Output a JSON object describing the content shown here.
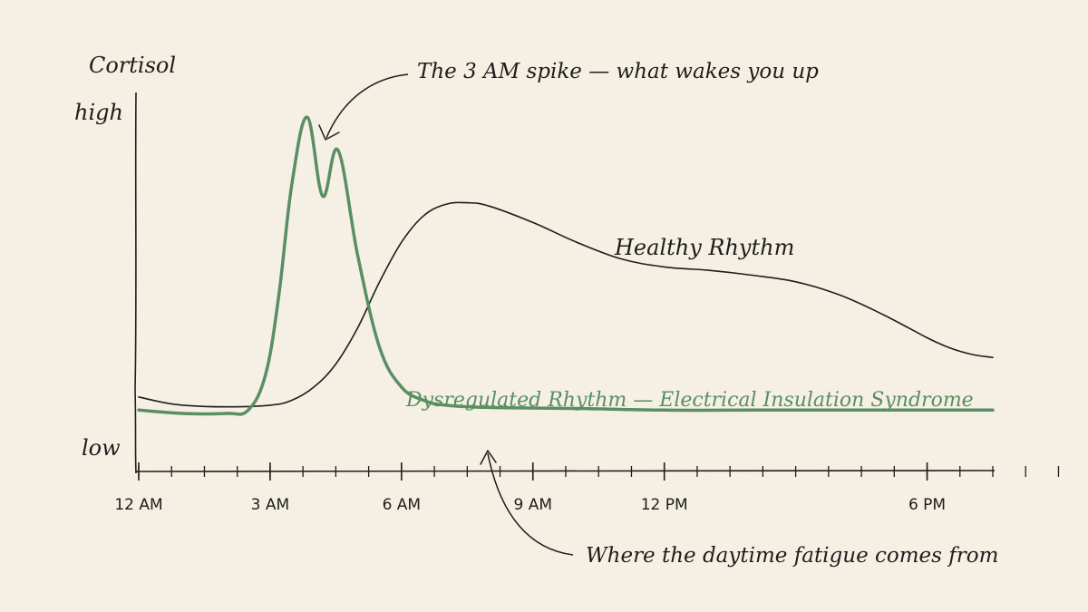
{
  "colors": {
    "background": "#f5f0e3",
    "ink": "#1d1d1d",
    "dysregulated": "#5a8e63"
  },
  "chart_data": {
    "type": "line",
    "ylabel": "Cortisol",
    "ytick_labels": [
      "high",
      "low"
    ],
    "ylim": [
      0,
      100
    ],
    "xlim": [
      0,
      24
    ],
    "x_tick_labels": [
      {
        "hour": 0,
        "label": "12 AM"
      },
      {
        "hour": 3,
        "label": "3 AM"
      },
      {
        "hour": 6,
        "label": "6 AM"
      },
      {
        "hour": 9,
        "label": "9 AM"
      },
      {
        "hour": 12,
        "label": "12 PM"
      },
      {
        "hour": 18,
        "label": "6 PM"
      }
    ],
    "minor_ticks": [
      0,
      0.75,
      1.5,
      2.25,
      3,
      3.75,
      4.5,
      5.25,
      6,
      6.75,
      7.5,
      8.25,
      9,
      9.75,
      10.5,
      11.25,
      12,
      12.75,
      13.5,
      14.25,
      15,
      15.75,
      16.5,
      17.25,
      18,
      18.75,
      19.5,
      20.25,
      21,
      21.75
    ],
    "series": [
      {
        "name": "Healthy Rhythm",
        "color": "#1d1d1d",
        "points": [
          [
            0,
            13
          ],
          [
            0.5,
            11.5
          ],
          [
            1,
            10.5
          ],
          [
            2,
            10
          ],
          [
            3,
            10.5
          ],
          [
            3.5,
            12
          ],
          [
            4,
            16
          ],
          [
            4.5,
            23
          ],
          [
            5,
            34
          ],
          [
            5.5,
            48
          ],
          [
            6,
            60
          ],
          [
            6.5,
            68
          ],
          [
            7,
            71.5
          ],
          [
            7.5,
            72
          ],
          [
            8,
            71
          ],
          [
            9,
            66
          ],
          [
            10,
            60
          ],
          [
            11,
            55
          ],
          [
            12,
            52.5
          ],
          [
            13,
            51.5
          ],
          [
            14,
            50
          ],
          [
            15,
            48
          ],
          [
            16,
            44
          ],
          [
            17,
            38
          ],
          [
            18,
            31
          ],
          [
            18.5,
            28
          ],
          [
            19,
            26
          ],
          [
            19.5,
            25
          ]
        ]
      },
      {
        "name": "Dysregulated Rhythm — Electrical Insulation Syndrome",
        "color": "#5a8e63",
        "points": [
          [
            0,
            9
          ],
          [
            1,
            8
          ],
          [
            2,
            8
          ],
          [
            2.5,
            9
          ],
          [
            2.9,
            20
          ],
          [
            3.2,
            44
          ],
          [
            3.5,
            78
          ],
          [
            3.85,
            98
          ],
          [
            4.2,
            74
          ],
          [
            4.55,
            88
          ],
          [
            5,
            56
          ],
          [
            5.5,
            28
          ],
          [
            6,
            16
          ],
          [
            6.5,
            12
          ],
          [
            7,
            10.5
          ],
          [
            8,
            9.8
          ],
          [
            10,
            9.5
          ],
          [
            12,
            9
          ],
          [
            14,
            9
          ],
          [
            16,
            9
          ],
          [
            18,
            9
          ],
          [
            19.5,
            9
          ]
        ]
      }
    ],
    "annotations": [
      {
        "text": "The 3 AM spike — what wakes you up"
      },
      {
        "text": "Where the daytime fatigue comes from"
      }
    ]
  }
}
